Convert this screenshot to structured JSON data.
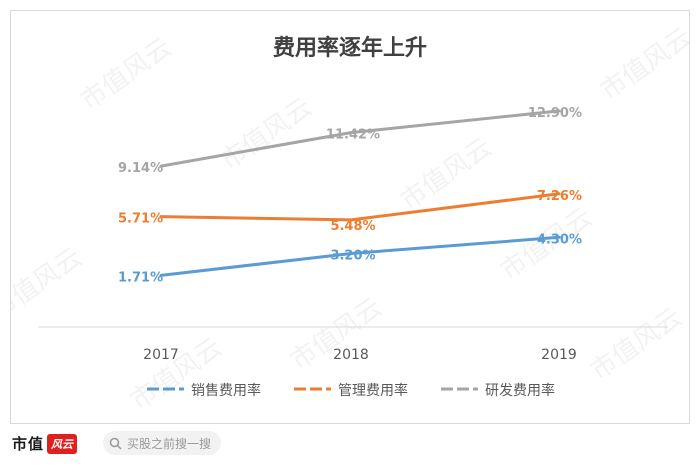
{
  "chart_data": {
    "type": "line",
    "title": "费用率逐年上升",
    "categories": [
      "2017",
      "2018",
      "2019"
    ],
    "ylim": [
      0,
      14
    ],
    "grid": false,
    "legend_position": "bottom",
    "series": [
      {
        "key": "sales",
        "name": "销售费用率",
        "color": "#5b9bd5",
        "values": [
          1.71,
          3.2,
          4.3
        ],
        "labels": [
          "1.71%",
          "3.20%",
          "4.30%"
        ]
      },
      {
        "key": "mgmt",
        "name": "管理费用率",
        "color": "#ed7d31",
        "values": [
          5.71,
          5.48,
          7.26
        ],
        "labels": [
          "5.71%",
          "5.48%",
          "7.26%"
        ]
      },
      {
        "key": "rd",
        "name": "研发费用率",
        "color": "#a5a5a5",
        "values": [
          9.14,
          11.42,
          12.9
        ],
        "labels": [
          "9.14%",
          "11.42%",
          "12.90%"
        ]
      }
    ]
  },
  "watermark": "市值风云",
  "footer": {
    "brand_text": "市值",
    "brand_mark": "风云",
    "search_placeholder": "买股之前搜一搜"
  }
}
